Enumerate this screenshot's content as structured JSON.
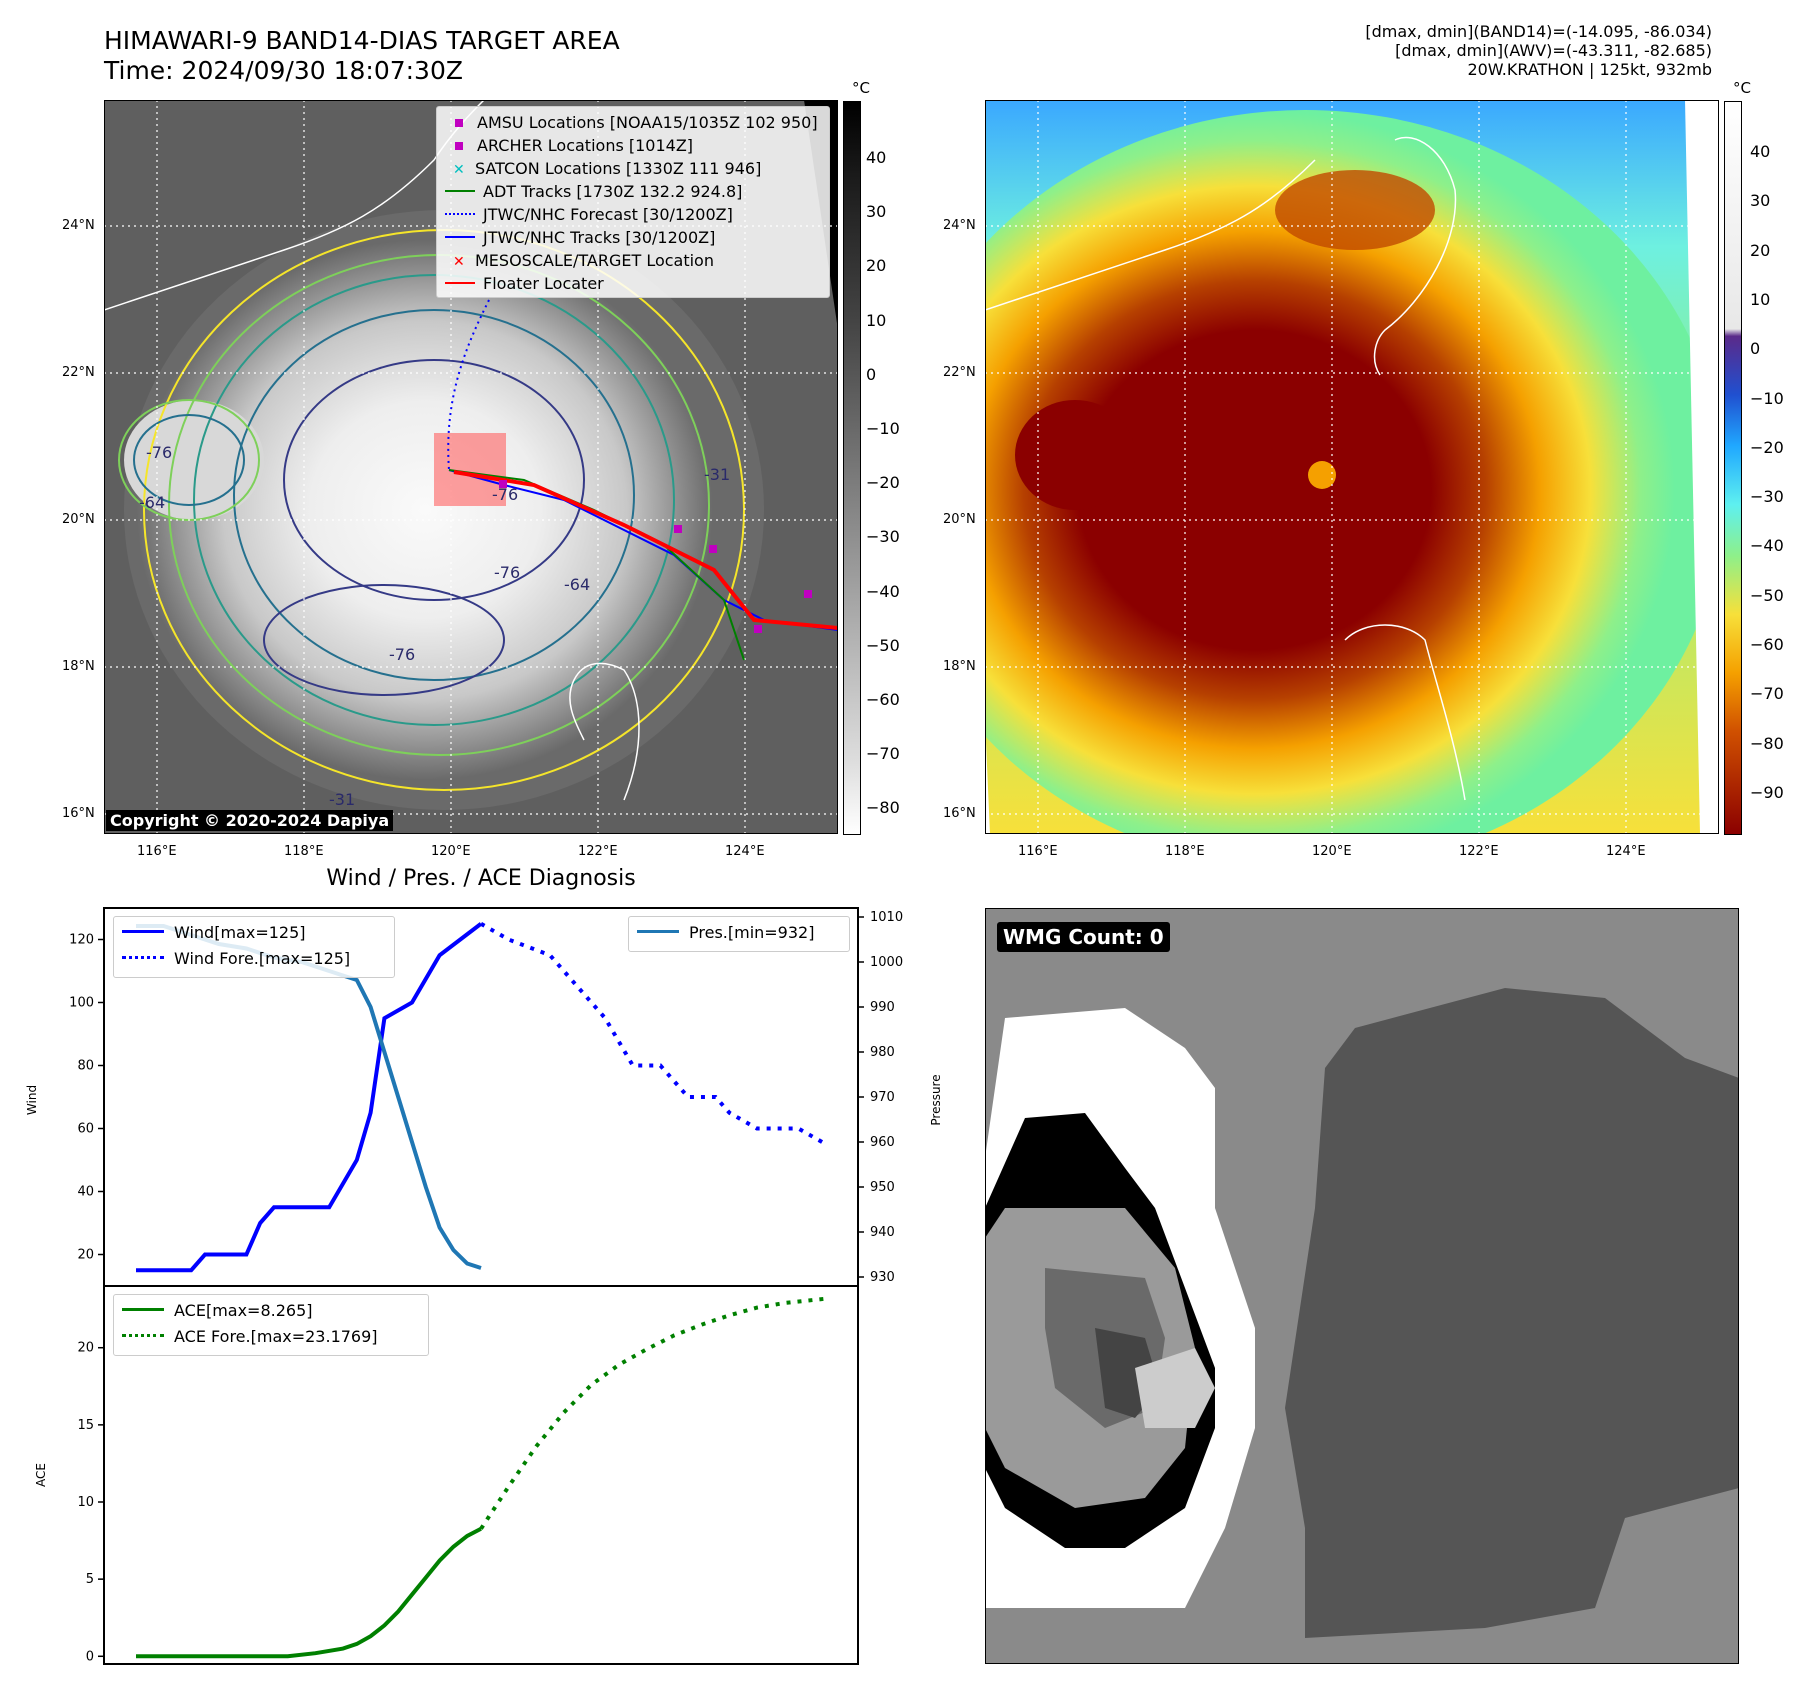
{
  "header": {
    "title_line1": "HIMAWARI-9 BAND14-DIAS TARGET AREA",
    "title_line2": "Time: 2024/09/30 18:07:30Z",
    "info_line1": "[dmax, dmin](BAND14)=(-14.095, -86.034)",
    "info_line2": "[dmax, dmin](AWV)=(-43.311, -82.685)",
    "info_line3": "20W.KRATHON | 125kt, 932mb"
  },
  "maps": {
    "lon_ticks": [
      "116°E",
      "118°E",
      "120°E",
      "122°E",
      "124°E"
    ],
    "lat_ticks": [
      "16°N",
      "18°N",
      "20°N",
      "22°N",
      "24°N"
    ],
    "colorbar_unit": "°C",
    "left_colorbar_ticks": [
      "40",
      "30",
      "20",
      "10",
      "0",
      "−10",
      "−20",
      "−30",
      "−40",
      "−50",
      "−60",
      "−70",
      "−80"
    ],
    "right_colorbar_ticks": [
      "40",
      "30",
      "20",
      "10",
      "0",
      "−10",
      "−20",
      "−30",
      "−40",
      "−50",
      "−60",
      "−70",
      "−80",
      "−90"
    ],
    "copyright": "Copyright © 2020-2024 Dapiya",
    "contour_labels": [
      "-76",
      "-64",
      "-31",
      "-76",
      "-64",
      "-76",
      "-76",
      "-31"
    ],
    "legend": [
      {
        "label": "AMSU Locations [NOAA15/1035Z 102 950]",
        "color": "#c000c0",
        "style": "square"
      },
      {
        "label": "ARCHER Locations [1014Z]",
        "color": "#c000c0",
        "style": "square"
      },
      {
        "label": "SATCON Locations [1330Z 111 946]",
        "color": "#00bfbf",
        "style": "x"
      },
      {
        "label": "ADT Tracks [1730Z 132.2 924.8]",
        "color": "#008000",
        "style": "line"
      },
      {
        "label": "JTWC/NHC Forecast [30/1200Z]",
        "color": "#0000ff",
        "style": "dotted"
      },
      {
        "label": "JTWC/NHC Tracks [30/1200Z]",
        "color": "#0000ff",
        "style": "line-dot"
      },
      {
        "label": "MESOSCALE/TARGET Location",
        "color": "#ff0000",
        "style": "x"
      },
      {
        "label": "Floater Locater",
        "color": "#ff0000",
        "style": "line"
      }
    ]
  },
  "diagnosis": {
    "title": "Wind / Pres. / ACE Diagnosis",
    "wind_ylabel": "Wind",
    "pres_ylabel": "Pressure",
    "ace_ylabel": "ACE",
    "wind_legend": [
      "Wind[max=125]",
      "Wind Fore.[max=125]"
    ],
    "pres_legend": [
      "Pres.[min=932]"
    ],
    "ace_legend": [
      "ACE[max=8.265]",
      "ACE Fore.[max=23.1769]"
    ],
    "wind_ticks": [
      "20",
      "40",
      "60",
      "80",
      "100",
      "120"
    ],
    "pres_ticks": [
      "930",
      "940",
      "950",
      "960",
      "970",
      "980",
      "990",
      "1000",
      "1010"
    ],
    "ace_ticks": [
      "0",
      "5",
      "10",
      "15",
      "20"
    ]
  },
  "wmg": {
    "label": "WMG Count: 0"
  },
  "chart_data": [
    {
      "type": "line",
      "xlim": [
        0,
        50
      ],
      "series": [
        {
          "name": "Wind[max=125]",
          "axis": "wind",
          "color": "#0000ff",
          "dash": "solid",
          "x": [
            0,
            4,
            5,
            6,
            8,
            9,
            10,
            12,
            14,
            16,
            17,
            18,
            20,
            22,
            25
          ],
          "values": [
            15,
            15,
            20,
            20,
            20,
            30,
            35,
            35,
            35,
            50,
            65,
            95,
            100,
            115,
            125
          ]
        },
        {
          "name": "Wind Fore.[max=125]",
          "axis": "wind",
          "color": "#0000ff",
          "dash": "dotted",
          "x": [
            25,
            27,
            30,
            32,
            34,
            36,
            38,
            39,
            40,
            42,
            43,
            45,
            46,
            48,
            50
          ],
          "values": [
            125,
            120,
            115,
            105,
            95,
            80,
            80,
            75,
            70,
            70,
            65,
            60,
            60,
            60,
            55
          ]
        },
        {
          "name": "Pres.[min=932]",
          "axis": "pressure",
          "color": "#1f77b4",
          "dash": "solid",
          "x": [
            0,
            2,
            4,
            6,
            8,
            10,
            12,
            14,
            16,
            17,
            18,
            19,
            20,
            21,
            22,
            23,
            24,
            25
          ],
          "values": [
            1008,
            1008,
            1006,
            1004,
            1003,
            1001,
            1000,
            998,
            996,
            990,
            980,
            970,
            960,
            950,
            941,
            936,
            933,
            932
          ]
        },
        {
          "name": "ACE[max=8.265]",
          "axis": "ace",
          "color": "#008000",
          "dash": "solid",
          "x": [
            0,
            4,
            8,
            11,
            13,
            15,
            16,
            17,
            18,
            19,
            20,
            21,
            22,
            23,
            24,
            25
          ],
          "values": [
            0,
            0,
            0,
            0,
            0.2,
            0.5,
            0.8,
            1.3,
            2.0,
            2.9,
            4.0,
            5.1,
            6.2,
            7.1,
            7.8,
            8.265
          ]
        },
        {
          "name": "ACE Fore.[max=23.1769]",
          "axis": "ace",
          "color": "#008000",
          "dash": "dotted",
          "x": [
            25,
            27,
            29,
            31,
            33,
            35,
            37,
            39,
            41,
            43,
            45,
            47,
            50
          ],
          "values": [
            8.265,
            11,
            13.6,
            15.8,
            17.6,
            18.9,
            19.9,
            20.8,
            21.5,
            22.1,
            22.6,
            22.9,
            23.18
          ]
        }
      ],
      "wind_ylim": [
        10,
        130
      ],
      "pressure_ylim": [
        928,
        1012
      ],
      "ace_ylim": [
        -0.5,
        24
      ]
    }
  ]
}
